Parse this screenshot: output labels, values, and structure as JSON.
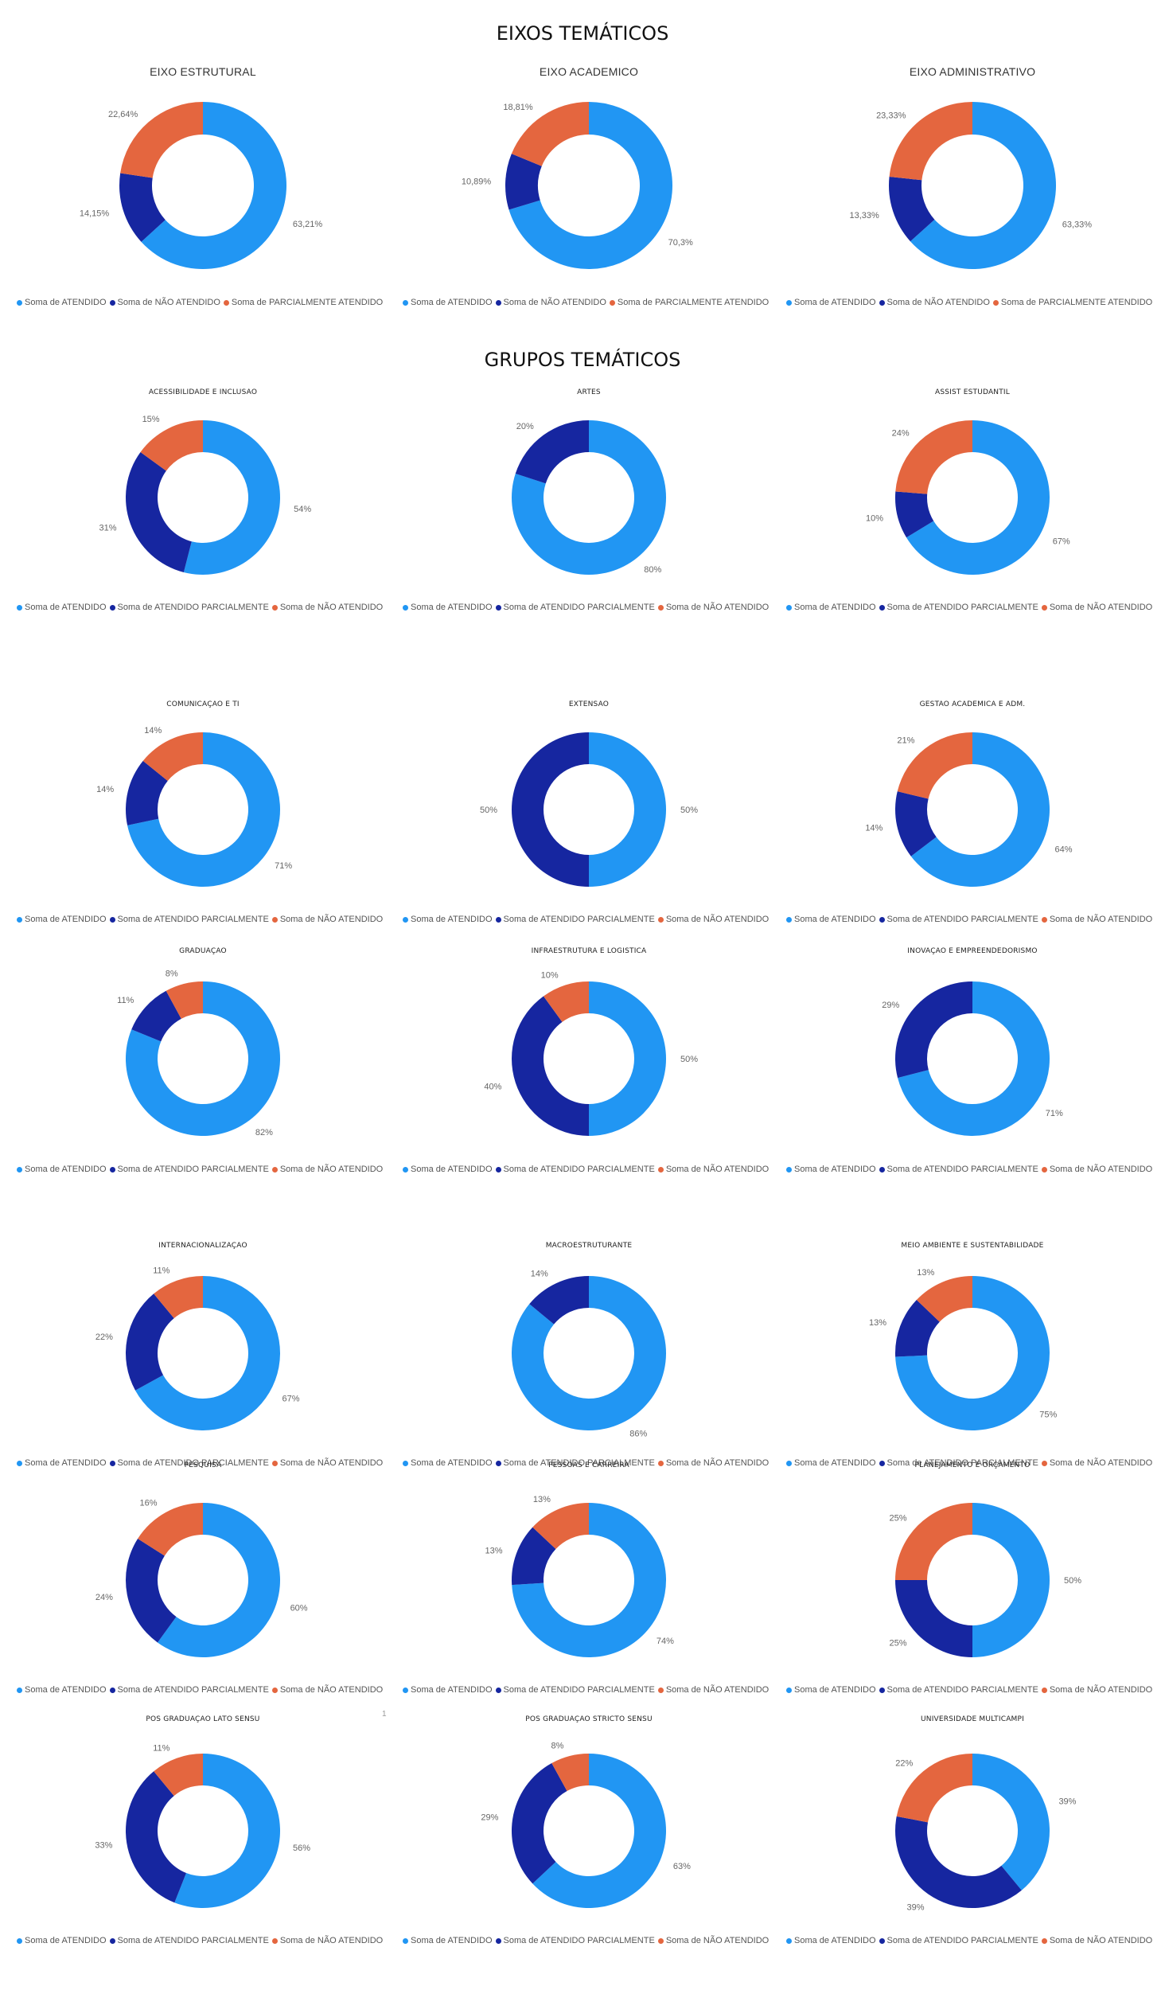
{
  "sections": {
    "eixos_title": "EIXOS TEMÁTICOS",
    "grupos_title": "GRUPOS TEMÁTICOS"
  },
  "colors": {
    "ATENDIDO": "#2196F3",
    "NAO_ATENDIDO": "#1626A0",
    "PARCIAL": "#E4663F"
  },
  "stray_mark": "1",
  "chart_data": [
    {
      "type": "pie",
      "title": "EIXO ESTRUTURAL",
      "legend": [
        "Soma de ATENDIDO",
        "Soma de NÃO ATENDIDO",
        "Soma de PARCIALMENTE ATENDIDO"
      ],
      "slices": [
        {
          "label": "63,21%",
          "value": 63.21,
          "color": "#2196F3"
        },
        {
          "label": "14,15%",
          "value": 14.15,
          "color": "#1626A0"
        },
        {
          "label": "22,64%",
          "value": 22.64,
          "color": "#E4663F"
        }
      ]
    },
    {
      "type": "pie",
      "title": "EIXO ACADEMICO",
      "legend": [
        "Soma de ATENDIDO",
        "Soma de NÃO ATENDIDO",
        "Soma de PARCIALMENTE ATENDIDO"
      ],
      "slices": [
        {
          "label": "70,3%",
          "value": 70.3,
          "color": "#2196F3"
        },
        {
          "label": "10,89%",
          "value": 10.89,
          "color": "#1626A0"
        },
        {
          "label": "18,81%",
          "value": 18.81,
          "color": "#E4663F"
        }
      ]
    },
    {
      "type": "pie",
      "title": "EIXO ADMINISTRATIVO",
      "legend": [
        "Soma de ATENDIDO",
        "Soma de NÃO ATENDIDO",
        "Soma de PARCIALMENTE ATENDIDO"
      ],
      "slices": [
        {
          "label": "63,33%",
          "value": 63.33,
          "color": "#2196F3"
        },
        {
          "label": "13,33%",
          "value": 13.33,
          "color": "#1626A0"
        },
        {
          "label": "23,33%",
          "value": 23.33,
          "color": "#E4663F"
        }
      ]
    },
    {
      "type": "pie",
      "title": "ACESSIBILIDADE E INCLUSAO",
      "legend": [
        "Soma de ATENDIDO",
        "Soma de ATENDIDO PARCIALMENTE",
        "Soma de NÃO ATENDIDO"
      ],
      "slices": [
        {
          "label": "54%",
          "value": 54,
          "color": "#2196F3"
        },
        {
          "label": "31%",
          "value": 31,
          "color": "#1626A0"
        },
        {
          "label": "15%",
          "value": 15,
          "color": "#E4663F"
        }
      ]
    },
    {
      "type": "pie",
      "title": "ARTES",
      "legend": [
        "Soma de ATENDIDO",
        "Soma de ATENDIDO PARCIALMENTE",
        "Soma de NÃO ATENDIDO"
      ],
      "slices": [
        {
          "label": "80%",
          "value": 80,
          "color": "#2196F3"
        },
        {
          "label": "20%",
          "value": 20,
          "color": "#1626A0"
        }
      ]
    },
    {
      "type": "pie",
      "title": "ASSIST ESTUDANTIL",
      "legend": [
        "Soma de ATENDIDO",
        "Soma de ATENDIDO PARCIALMENTE",
        "Soma de NÃO ATENDIDO"
      ],
      "slices": [
        {
          "label": "67%",
          "value": 67,
          "color": "#2196F3"
        },
        {
          "label": "10%",
          "value": 10,
          "color": "#1626A0"
        },
        {
          "label": "24%",
          "value": 24,
          "color": "#E4663F"
        }
      ]
    },
    {
      "type": "pie",
      "title": "COMUNICAÇAO E TI",
      "legend": [
        "Soma de ATENDIDO",
        "Soma de ATENDIDO PARCIALMENTE",
        "Soma de NÃO ATENDIDO"
      ],
      "slices": [
        {
          "label": "71%",
          "value": 71,
          "color": "#2196F3"
        },
        {
          "label": "14%",
          "value": 14,
          "color": "#1626A0"
        },
        {
          "label": "14%",
          "value": 14,
          "color": "#E4663F"
        }
      ]
    },
    {
      "type": "pie",
      "title": "EXTENSAO",
      "legend": [
        "Soma de ATENDIDO",
        "Soma de ATENDIDO PARCIALMENTE",
        "Soma de NÃO ATENDIDO"
      ],
      "slices": [
        {
          "label": "50%",
          "value": 50,
          "color": "#2196F3"
        },
        {
          "label": "50%",
          "value": 50,
          "color": "#1626A0"
        }
      ]
    },
    {
      "type": "pie",
      "title": "GESTAO ACADEMICA E ADM.",
      "legend": [
        "Soma de ATENDIDO",
        "Soma de ATENDIDO PARCIALMENTE",
        "Soma de NÃO ATENDIDO"
      ],
      "slices": [
        {
          "label": "64%",
          "value": 64,
          "color": "#2196F3"
        },
        {
          "label": "14%",
          "value": 14,
          "color": "#1626A0"
        },
        {
          "label": "21%",
          "value": 21,
          "color": "#E4663F"
        }
      ]
    },
    {
      "type": "pie",
      "title": "GRADUAÇAO",
      "legend": [
        "Soma de ATENDIDO",
        "Soma de ATENDIDO PARCIALMENTE",
        "Soma de NÃO ATENDIDO"
      ],
      "slices": [
        {
          "label": "82%",
          "value": 82,
          "color": "#2196F3"
        },
        {
          "label": "11%",
          "value": 11,
          "color": "#1626A0"
        },
        {
          "label": "8%",
          "value": 8,
          "color": "#E4663F"
        }
      ]
    },
    {
      "type": "pie",
      "title": "INFRAESTRUTURA E LOGISTICA",
      "legend": [
        "Soma de ATENDIDO",
        "Soma de ATENDIDO PARCIALMENTE",
        "Soma de NÃO ATENDIDO"
      ],
      "slices": [
        {
          "label": "50%",
          "value": 50,
          "color": "#2196F3"
        },
        {
          "label": "40%",
          "value": 40,
          "color": "#1626A0"
        },
        {
          "label": "10%",
          "value": 10,
          "color": "#E4663F"
        }
      ]
    },
    {
      "type": "pie",
      "title": "INOVAÇAO E EMPREENDEDORISMO",
      "legend": [
        "Soma de ATENDIDO",
        "Soma de ATENDIDO PARCIALMENTE",
        "Soma de NÃO ATENDIDO"
      ],
      "slices": [
        {
          "label": "71%",
          "value": 71,
          "color": "#2196F3"
        },
        {
          "label": "29%",
          "value": 29,
          "color": "#1626A0"
        }
      ]
    },
    {
      "type": "pie",
      "title": "INTERNACIONALIZAÇAO",
      "legend": [
        "Soma de ATENDIDO",
        "Soma de ATENDIDO PARCIALMENTE",
        "Soma de NÃO ATENDIDO"
      ],
      "slices": [
        {
          "label": "67%",
          "value": 67,
          "color": "#2196F3"
        },
        {
          "label": "22%",
          "value": 22,
          "color": "#1626A0"
        },
        {
          "label": "11%",
          "value": 11,
          "color": "#E4663F"
        }
      ]
    },
    {
      "type": "pie",
      "title": "MACROESTRUTURANTE",
      "legend": [
        "Soma de ATENDIDO",
        "Soma de ATENDIDO PARCIALMENTE",
        "Soma de NÃO ATENDIDO"
      ],
      "slices": [
        {
          "label": "86%",
          "value": 86,
          "color": "#2196F3"
        },
        {
          "label": "14%",
          "value": 14,
          "color": "#1626A0"
        }
      ]
    },
    {
      "type": "pie",
      "title": "MEIO AMBIENTE E SUSTENTABILIDADE",
      "legend": [
        "Soma de ATENDIDO",
        "Soma de ATENDIDO PARCIALMENTE",
        "Soma de NÃO ATENDIDO"
      ],
      "slices": [
        {
          "label": "75%",
          "value": 75,
          "color": "#2196F3"
        },
        {
          "label": "13%",
          "value": 13,
          "color": "#1626A0"
        },
        {
          "label": "13%",
          "value": 13,
          "color": "#E4663F"
        }
      ]
    },
    {
      "type": "pie",
      "title": "PESQUISA",
      "legend": [
        "Soma de ATENDIDO",
        "Soma de ATENDIDO PARCIALMENTE",
        "Soma de NÃO ATENDIDO"
      ],
      "slices": [
        {
          "label": "60%",
          "value": 60,
          "color": "#2196F3"
        },
        {
          "label": "24%",
          "value": 24,
          "color": "#1626A0"
        },
        {
          "label": "16%",
          "value": 16,
          "color": "#E4663F"
        }
      ]
    },
    {
      "type": "pie",
      "title": "PESSOAS E CARREIRA",
      "legend": [
        "Soma de ATENDIDO",
        "Soma de ATENDIDO PARCIALMENTE",
        "Soma de NÃO ATENDIDO"
      ],
      "slices": [
        {
          "label": "74%",
          "value": 74,
          "color": "#2196F3"
        },
        {
          "label": "13%",
          "value": 13,
          "color": "#1626A0"
        },
        {
          "label": "13%",
          "value": 13,
          "color": "#E4663F"
        }
      ]
    },
    {
      "type": "pie",
      "title": "PLANEJAMENTO E ORÇAMENTO",
      "legend": [
        "Soma de ATENDIDO",
        "Soma de ATENDIDO PARCIALMENTE",
        "Soma de NÃO ATENDIDO"
      ],
      "slices": [
        {
          "label": "50%",
          "value": 50,
          "color": "#2196F3"
        },
        {
          "label": "25%",
          "value": 25,
          "color": "#1626A0"
        },
        {
          "label": "25%",
          "value": 25,
          "color": "#E4663F"
        }
      ]
    },
    {
      "type": "pie",
      "title": "POS GRADUAÇAO LATO SENSU",
      "legend": [
        "Soma de ATENDIDO",
        "Soma de ATENDIDO PARCIALMENTE",
        "Soma de NÃO ATENDIDO"
      ],
      "slices": [
        {
          "label": "56%",
          "value": 56,
          "color": "#2196F3"
        },
        {
          "label": "33%",
          "value": 33,
          "color": "#1626A0"
        },
        {
          "label": "11%",
          "value": 11,
          "color": "#E4663F"
        }
      ]
    },
    {
      "type": "pie",
      "title": "POS GRADUAÇAO STRICTO SENSU",
      "legend": [
        "Soma de ATENDIDO",
        "Soma de ATENDIDO PARCIALMENTE",
        "Soma de NÃO ATENDIDO"
      ],
      "slices": [
        {
          "label": "63%",
          "value": 63,
          "color": "#2196F3"
        },
        {
          "label": "29%",
          "value": 29,
          "color": "#1626A0"
        },
        {
          "label": "8%",
          "value": 8,
          "color": "#E4663F"
        }
      ]
    },
    {
      "type": "pie",
      "title": "UNIVERSIDADE MULTICAMPI",
      "legend": [
        "Soma de ATENDIDO",
        "Soma de ATENDIDO PARCIALMENTE",
        "Soma de NÃO ATENDIDO"
      ],
      "slices": [
        {
          "label": "39%",
          "value": 39,
          "color": "#2196F3"
        },
        {
          "label": "39%",
          "value": 39,
          "color": "#1626A0"
        },
        {
          "label": "22%",
          "value": 22,
          "color": "#E4663F"
        }
      ]
    }
  ]
}
